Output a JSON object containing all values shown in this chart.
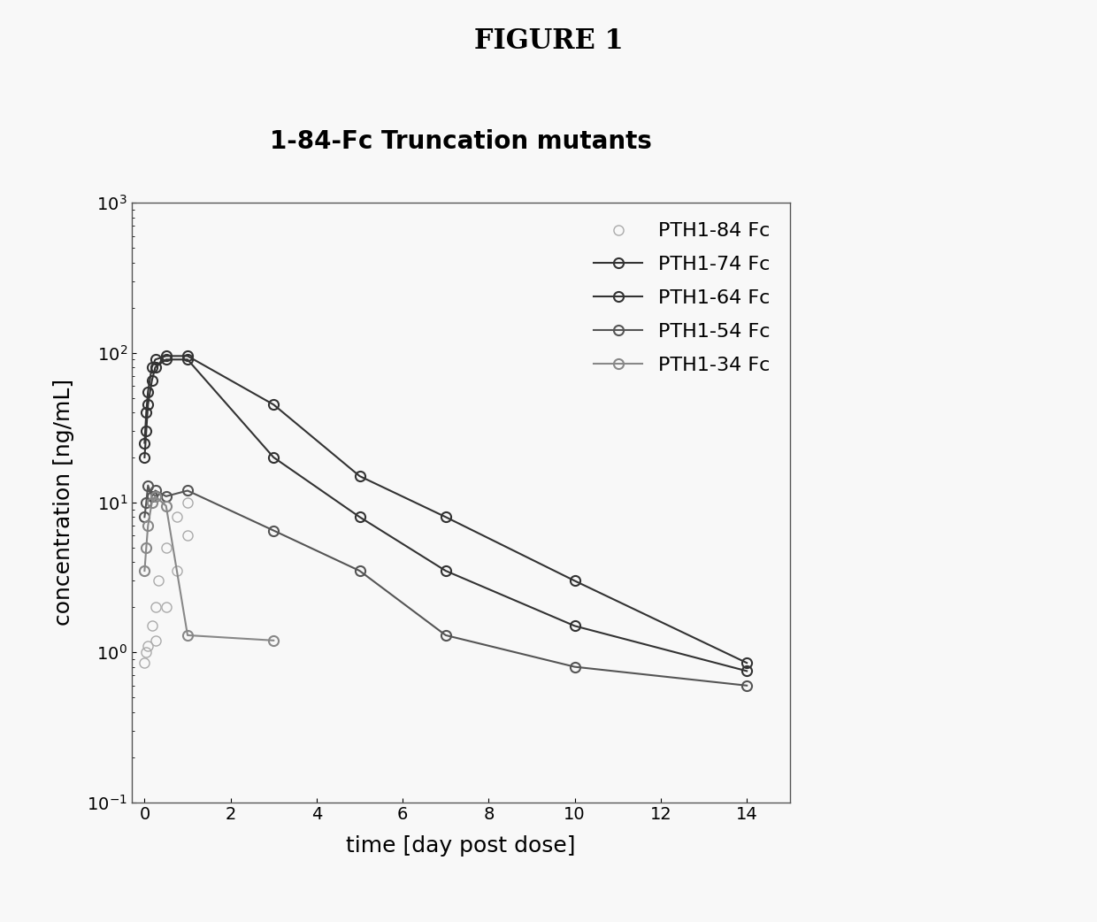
{
  "title": "FIGURE 1",
  "subtitle": "1-84-Fc Truncation mutants",
  "xlabel": "time [day post dose]",
  "ylabel": "concentration [ng/mL]",
  "xlim": [
    -0.3,
    15
  ],
  "ylim_log": [
    0.1,
    1000
  ],
  "xticks": [
    0,
    2,
    4,
    6,
    8,
    10,
    12,
    14
  ],
  "series": [
    {
      "label": "PTH1-84 Fc",
      "color": "#aaaaaa",
      "linewidth": 0,
      "marker": "o",
      "markersize": 8,
      "x": [
        0,
        0.04,
        0.08,
        0.17,
        0.25,
        0.33,
        0.5,
        0.75,
        1.0,
        0.25,
        0.5,
        0.75,
        1.0
      ],
      "y": [
        0.85,
        1.0,
        1.1,
        1.5,
        2.0,
        3.0,
        5.0,
        8.0,
        10.0,
        1.2,
        2.0,
        3.5,
        6.0
      ]
    },
    {
      "label": "PTH1-74 Fc",
      "color": "#333333",
      "linewidth": 1.5,
      "marker": "o",
      "markersize": 8,
      "x": [
        0,
        0.04,
        0.08,
        0.17,
        0.25,
        0.5,
        1.0,
        3.0,
        5.0,
        7.0,
        10.0,
        14.0
      ],
      "y": [
        25,
        40,
        55,
        80,
        90,
        95,
        95,
        45,
        15,
        8,
        3.0,
        0.85
      ]
    },
    {
      "label": "PTH1-64 Fc",
      "color": "#333333",
      "linewidth": 1.5,
      "marker": "o",
      "markersize": 8,
      "x": [
        0,
        0.04,
        0.08,
        0.17,
        0.25,
        0.5,
        1.0,
        3.0,
        5.0,
        7.0,
        10.0,
        14.0
      ],
      "y": [
        20,
        30,
        45,
        65,
        80,
        90,
        90,
        20,
        8,
        3.5,
        1.5,
        0.75
      ]
    },
    {
      "label": "PTH1-54 Fc",
      "color": "#555555",
      "linewidth": 1.5,
      "marker": "o",
      "markersize": 8,
      "x": [
        0,
        0.04,
        0.08,
        0.17,
        0.25,
        0.5,
        1.0,
        3.0,
        5.0,
        7.0,
        10.0,
        14.0
      ],
      "y": [
        8,
        10,
        13,
        11,
        12,
        11,
        12,
        6.5,
        3.5,
        1.3,
        0.8,
        0.6
      ]
    },
    {
      "label": "PTH1-34 Fc",
      "color": "#888888",
      "linewidth": 1.5,
      "marker": "o",
      "markersize": 8,
      "x": [
        0,
        0.04,
        0.08,
        0.17,
        0.25,
        0.5,
        1.0,
        3.0
      ],
      "y": [
        3.5,
        5.0,
        7.0,
        10.0,
        11.0,
        9.5,
        1.3,
        1.2
      ]
    }
  ]
}
